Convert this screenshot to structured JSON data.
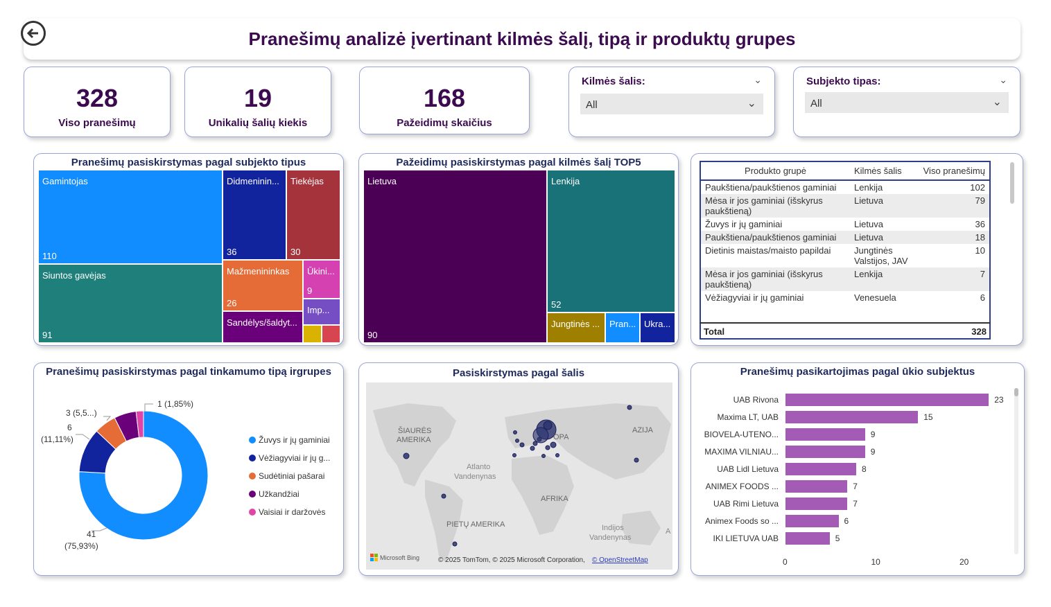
{
  "header": {
    "title": "Pranešimų analizė įvertinant kilmės šalį, tipą ir produktų grupes"
  },
  "kpis": [
    {
      "value": "328",
      "label": "Viso pranešimų"
    },
    {
      "value": "19",
      "label": "Unikalių šalių kiekis"
    },
    {
      "value": "168",
      "label": "Pažeidimų skaičius"
    }
  ],
  "slicers": [
    {
      "label": "Kilmės šalis:",
      "value": "All"
    },
    {
      "label": "Subjekto tipas:",
      "value": "All"
    }
  ],
  "treemap_subject": {
    "title": "Pranešimų pasiskirstymas pagal subjekto tipus",
    "tiles": [
      {
        "name": "Gamintojas",
        "value": "110",
        "color": "#118dff"
      },
      {
        "name": "Siuntos gavėjas",
        "value": "91",
        "color": "#1f7f7a"
      },
      {
        "name": "Didmeninin...",
        "value": "36",
        "color": "#12239e"
      },
      {
        "name": "Tiekėjas",
        "value": "30",
        "color": "#a4333c"
      },
      {
        "name": "Mažmenininkas",
        "value": "26",
        "color": "#e66c37"
      },
      {
        "name": "Ūkini...",
        "value": "9",
        "color": "#d641b2"
      },
      {
        "name": "Sandėlys/šaldyt...",
        "value": "",
        "color": "#6b007b"
      },
      {
        "name": "Imp...",
        "value": "",
        "color": "#744ec2"
      }
    ]
  },
  "treemap_country": {
    "title": "Pažeidimų pasiskirstymas pagal kilmės šalį TOP5",
    "tiles": [
      {
        "name": "Lietuva",
        "value": "90",
        "color": "#4b0055"
      },
      {
        "name": "Lenkija",
        "value": "52",
        "color": "#197278"
      },
      {
        "name": "Jungtinės ...",
        "value": "",
        "color": "#9e7f00"
      },
      {
        "name": "Pran...",
        "value": "",
        "color": "#118dff"
      },
      {
        "name": "Ukra...",
        "value": "",
        "color": "#12239e"
      }
    ]
  },
  "table": {
    "headers": [
      "Produkto grupė",
      "Kilmės šalis",
      "Viso pranešimų"
    ],
    "rows": [
      [
        "Paukštiena/paukštienos gaminiai",
        "Lenkija",
        "102"
      ],
      [
        "Mėsa ir jos gaminiai (išskyrus paukštieną)",
        "Lietuva",
        "79"
      ],
      [
        "Žuvys ir jų gaminiai",
        "Lietuva",
        "36"
      ],
      [
        "Paukštiena/paukštienos gaminiai",
        "Lietuva",
        "18"
      ],
      [
        "Dietinis maistas/maisto papildai",
        "Jungtinės Valstijos, JAV",
        "10"
      ],
      [
        "Mėsa ir jos gaminiai (išskyrus paukštieną)",
        "Lenkija",
        "7"
      ],
      [
        "Vėžiagyviai ir jų gaminiai",
        "Venesuela",
        "6"
      ]
    ],
    "total_label": "Total",
    "total_value": "328"
  },
  "donut": {
    "title": "Pranešimų pasiskirstymas pagal tinkamumo tipą irgrupes",
    "labels": {
      "a": "1 (1,85%)",
      "b": "3 (5,5...)",
      "c1": "6",
      "c2": "(11,11%)",
      "d1": "41",
      "d2": "(75,93%)"
    },
    "legend": [
      {
        "name": "Žuvys ir jų gaminiai",
        "color": "#118dff"
      },
      {
        "name": "Vėžiagyviai ir jų g...",
        "color": "#12239e"
      },
      {
        "name": "Sudėtiniai pašarai",
        "color": "#e66c37"
      },
      {
        "name": "Užkandžiai",
        "color": "#6b007b"
      },
      {
        "name": "Vaisiai ir daržovės",
        "color": "#e044a7"
      }
    ]
  },
  "chart_data": {
    "type": "pie",
    "categories": [
      "Žuvys ir jų gaminiai",
      "Vėžiagyviai ir jų g...",
      "Sudėtiniai pašarai",
      "Užkandžiai",
      "Vaisiai ir daržovės"
    ],
    "values": [
      41,
      6,
      3,
      3,
      1
    ],
    "title": "Pranešimų pasiskirstymas pagal tinkamumo tipą irgrupes"
  },
  "map": {
    "title": "Pasiskirstymas pagal šalis",
    "labels": {
      "na": "ŠIAURĖS AMERIKA",
      "eu": "EUROPA",
      "asia": "AZIJA",
      "atl": "Atlanto Vandenynas",
      "af": "AFRIKA",
      "sa": "PIETŲ AMERIKA",
      "ind": "Indijos Vandenynas"
    },
    "brand": "Microsoft Bing",
    "attribution": "© 2025 TomTom, © 2025 Microsoft Corporation,",
    "osm": "© OpenStreetMap"
  },
  "bar_chart": {
    "title": "Pranešimų pasikartojimas pagal ūkio subjektus",
    "categories": [
      "UAB Rivona",
      "Maxima LT, UAB",
      "BIOVELA-UTENO...",
      "MAXIMA VILNIAU...",
      "UAB Lidl Lietuva",
      "ANIMEX FOODS ...",
      "UAB Rimi Lietuva",
      "Animex Foods so ...",
      "IKI LIETUVA UAB"
    ],
    "values": [
      23,
      15,
      9,
      9,
      8,
      7,
      7,
      6,
      5
    ],
    "ticks": [
      "0",
      "10",
      "20"
    ],
    "xlim": [
      0,
      24
    ]
  }
}
